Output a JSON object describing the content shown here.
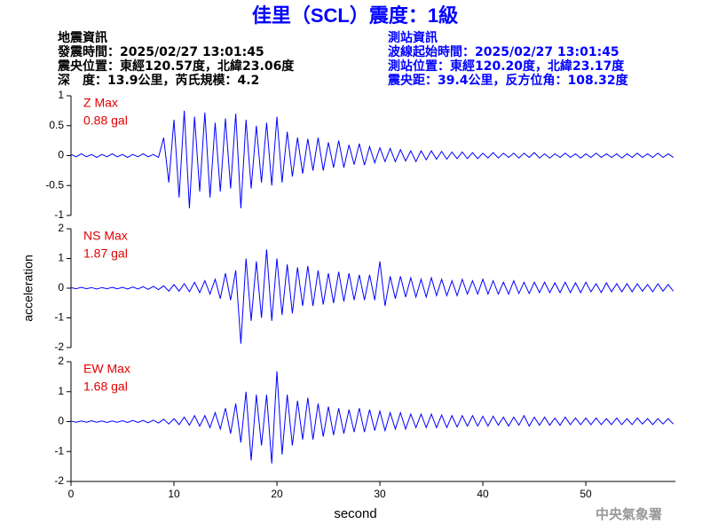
{
  "header": {
    "title": "佳里（SCL）震度：1級",
    "left": [
      "地震資訊",
      "發震時間：2025/02/27 13:01:45",
      "震央位置：東經120.57度，北緯23.06度",
      "深　度：13.9公里，芮氏規模：4.2"
    ],
    "right": [
      "測站資訊",
      "波線起始時間：2025/02/27 13:01:45",
      "測站位置：東經120.20度，北緯23.17度",
      "震央距：39.4公里，反方位角：108.32度"
    ]
  },
  "ylabel": "acceleration",
  "watermark": "中央氣象署",
  "chart_data": [
    {
      "type": "line",
      "color": "#0000ff",
      "annotations": [
        "Z Max",
        "0.88 gal"
      ],
      "xlim": [
        0,
        58.7
      ],
      "ylim": [
        -1,
        1
      ],
      "yticks": [
        -1,
        -0.5,
        0,
        0.5,
        1
      ],
      "x": [
        0,
        0.5,
        1,
        1.5,
        2,
        2.5,
        3,
        3.5,
        4,
        4.5,
        5,
        5.5,
        6,
        6.5,
        7,
        7.5,
        8,
        8.5,
        9,
        9.5,
        10,
        10.5,
        11,
        11.5,
        12,
        12.5,
        13,
        13.5,
        14,
        14.5,
        15,
        15.5,
        16,
        16.5,
        17,
        17.5,
        18,
        18.5,
        19,
        19.5,
        20,
        20.5,
        21,
        21.5,
        22,
        22.5,
        23,
        23.5,
        24,
        24.5,
        25,
        25.5,
        26,
        26.5,
        27,
        27.5,
        28,
        28.5,
        29,
        29.5,
        30,
        30.5,
        31,
        31.5,
        32,
        32.5,
        33,
        33.5,
        34,
        34.5,
        35,
        35.5,
        36,
        36.5,
        37,
        37.5,
        38,
        38.5,
        39,
        39.5,
        40,
        40.5,
        41,
        41.5,
        42,
        42.5,
        43,
        43.5,
        44,
        44.5,
        45,
        45.5,
        46,
        46.5,
        47,
        47.5,
        48,
        48.5,
        49,
        49.5,
        50,
        50.5,
        51,
        51.5,
        52,
        52.5,
        53,
        53.5,
        54,
        54.5,
        55,
        55.5,
        56,
        56.5,
        57,
        57.5,
        58,
        58.5
      ],
      "values": [
        0.02,
        -0.02,
        0.03,
        -0.02,
        0.02,
        -0.03,
        0.02,
        -0.02,
        0.03,
        -0.02,
        0.02,
        -0.03,
        0.02,
        -0.02,
        0.03,
        -0.02,
        0.02,
        -0.03,
        0.3,
        -0.45,
        0.6,
        -0.7,
        0.75,
        -0.88,
        0.65,
        -0.6,
        0.72,
        -0.7,
        0.55,
        -0.6,
        0.62,
        -0.55,
        0.7,
        -0.88,
        0.6,
        -0.55,
        0.5,
        -0.45,
        0.55,
        -0.5,
        0.65,
        -0.45,
        0.4,
        -0.35,
        0.3,
        -0.3,
        0.28,
        -0.25,
        0.3,
        -0.25,
        0.22,
        -0.2,
        0.25,
        -0.2,
        0.18,
        -0.15,
        0.2,
        -0.16,
        0.15,
        -0.12,
        0.13,
        -0.1,
        0.12,
        -0.1,
        0.1,
        -0.09,
        0.08,
        -0.1,
        0.08,
        -0.07,
        0.08,
        -0.06,
        0.07,
        -0.06,
        0.06,
        -0.05,
        0.06,
        -0.05,
        0.05,
        -0.05,
        0.04,
        -0.04,
        0.05,
        -0.04,
        0.04,
        -0.03,
        0.04,
        -0.04,
        0.04,
        -0.03,
        0.05,
        -0.04,
        0.03,
        -0.04,
        0.03,
        -0.03,
        0.04,
        -0.03,
        0.03,
        -0.04,
        0.03,
        -0.03,
        0.04,
        -0.03,
        0.03,
        -0.03,
        0.03,
        -0.04,
        0.03,
        -0.03,
        0.04,
        -0.03,
        0.03,
        -0.03,
        0.04,
        -0.03,
        0.03,
        -0.03
      ]
    },
    {
      "type": "line",
      "color": "#0000ff",
      "annotations": [
        "NS Max",
        "1.87 gal"
      ],
      "xlim": [
        0,
        58.7
      ],
      "ylim": [
        -2,
        2
      ],
      "yticks": [
        -2,
        -1,
        0,
        1,
        2
      ],
      "x": [
        0,
        0.5,
        1,
        1.5,
        2,
        2.5,
        3,
        3.5,
        4,
        4.5,
        5,
        5.5,
        6,
        6.5,
        7,
        7.5,
        8,
        8.5,
        9,
        9.5,
        10,
        10.5,
        11,
        11.5,
        12,
        12.5,
        13,
        13.5,
        14,
        14.5,
        15,
        15.5,
        16,
        16.5,
        17,
        17.5,
        18,
        18.5,
        19,
        19.5,
        20,
        20.5,
        21,
        21.5,
        22,
        22.5,
        23,
        23.5,
        24,
        24.5,
        25,
        25.5,
        26,
        26.5,
        27,
        27.5,
        28,
        28.5,
        29,
        29.5,
        30,
        30.5,
        31,
        31.5,
        32,
        32.5,
        33,
        33.5,
        34,
        34.5,
        35,
        35.5,
        36,
        36.5,
        37,
        37.5,
        38,
        38.5,
        39,
        39.5,
        40,
        40.5,
        41,
        41.5,
        42,
        42.5,
        43,
        43.5,
        44,
        44.5,
        45,
        45.5,
        46,
        46.5,
        47,
        47.5,
        48,
        48.5,
        49,
        49.5,
        50,
        50.5,
        51,
        51.5,
        52,
        52.5,
        53,
        53.5,
        54,
        54.5,
        55,
        55.5,
        56,
        56.5,
        57,
        57.5,
        58,
        58.5
      ],
      "values": [
        0.02,
        -0.02,
        0.03,
        -0.02,
        0.02,
        -0.03,
        0.02,
        -0.02,
        0.03,
        -0.02,
        0.03,
        -0.03,
        0.04,
        -0.03,
        0.05,
        -0.04,
        0.06,
        -0.05,
        0.08,
        -0.1,
        0.12,
        -0.1,
        0.15,
        -0.12,
        0.2,
        -0.15,
        0.25,
        -0.2,
        0.3,
        -0.35,
        0.5,
        -0.4,
        0.6,
        -1.87,
        1.0,
        -1.1,
        0.9,
        -1.0,
        1.3,
        -1.1,
        1.0,
        -0.9,
        0.8,
        -0.85,
        0.7,
        -0.6,
        0.75,
        -0.6,
        0.6,
        -0.55,
        0.5,
        -0.5,
        0.55,
        -0.45,
        0.5,
        -0.4,
        0.45,
        -0.4,
        0.45,
        -0.4,
        0.9,
        -0.6,
        0.4,
        -0.35,
        0.4,
        -0.3,
        0.35,
        -0.3,
        0.3,
        -0.3,
        0.35,
        -0.25,
        0.3,
        -0.25,
        0.25,
        -0.25,
        0.3,
        -0.2,
        0.25,
        -0.2,
        0.3,
        -0.2,
        0.25,
        -0.2,
        0.2,
        -0.2,
        0.25,
        -0.18,
        0.2,
        -0.18,
        0.2,
        -0.15,
        0.2,
        -0.15,
        0.18,
        -0.15,
        0.2,
        -0.15,
        0.18,
        -0.15,
        0.2,
        -0.12,
        0.15,
        -0.15,
        0.18,
        -0.12,
        0.15,
        -0.12,
        0.15,
        -0.12,
        0.15,
        -0.1,
        0.12,
        -0.12,
        0.15,
        -0.1,
        0.12,
        -0.1
      ]
    },
    {
      "type": "line",
      "color": "#0000ff",
      "annotations": [
        "EW Max",
        "1.68 gal"
      ],
      "xlim": [
        0,
        58.7
      ],
      "ylim": [
        -2,
        2
      ],
      "yticks": [
        -2,
        -1,
        0,
        1,
        2
      ],
      "xticks": [
        0,
        10,
        20,
        30,
        40,
        50
      ],
      "xlabel": "second",
      "x": [
        0,
        0.5,
        1,
        1.5,
        2,
        2.5,
        3,
        3.5,
        4,
        4.5,
        5,
        5.5,
        6,
        6.5,
        7,
        7.5,
        8,
        8.5,
        9,
        9.5,
        10,
        10.5,
        11,
        11.5,
        12,
        12.5,
        13,
        13.5,
        14,
        14.5,
        15,
        15.5,
        16,
        16.5,
        17,
        17.5,
        18,
        18.5,
        19,
        19.5,
        20,
        20.5,
        21,
        21.5,
        22,
        22.5,
        23,
        23.5,
        24,
        24.5,
        25,
        25.5,
        26,
        26.5,
        27,
        27.5,
        28,
        28.5,
        29,
        29.5,
        30,
        30.5,
        31,
        31.5,
        32,
        32.5,
        33,
        33.5,
        34,
        34.5,
        35,
        35.5,
        36,
        36.5,
        37,
        37.5,
        38,
        38.5,
        39,
        39.5,
        40,
        40.5,
        41,
        41.5,
        42,
        42.5,
        43,
        43.5,
        44,
        44.5,
        45,
        45.5,
        46,
        46.5,
        47,
        47.5,
        48,
        48.5,
        49,
        49.5,
        50,
        50.5,
        51,
        51.5,
        52,
        52.5,
        53,
        53.5,
        54,
        54.5,
        55,
        55.5,
        56,
        56.5,
        57,
        57.5,
        58,
        58.5
      ],
      "values": [
        0.02,
        -0.02,
        0.02,
        -0.02,
        0.03,
        -0.02,
        0.02,
        -0.03,
        0.02,
        -0.02,
        0.03,
        -0.03,
        0.04,
        -0.03,
        0.04,
        -0.04,
        0.05,
        -0.05,
        0.08,
        -0.08,
        0.1,
        -0.1,
        0.15,
        -0.12,
        0.2,
        -0.15,
        0.2,
        -0.2,
        0.3,
        -0.25,
        0.45,
        -0.4,
        0.6,
        -0.7,
        1.0,
        -1.3,
        0.9,
        -0.8,
        0.9,
        -1.4,
        1.68,
        -1.1,
        0.9,
        -0.8,
        0.7,
        -0.6,
        0.8,
        -0.6,
        0.6,
        -0.5,
        0.5,
        -0.45,
        0.45,
        -0.4,
        0.4,
        -0.35,
        0.45,
        -0.35,
        0.4,
        -0.3,
        0.35,
        -0.3,
        0.3,
        -0.25,
        0.3,
        -0.25,
        0.25,
        -0.2,
        0.25,
        -0.2,
        0.25,
        -0.2,
        0.22,
        -0.2,
        0.2,
        -0.18,
        0.2,
        -0.15,
        0.2,
        -0.15,
        0.18,
        -0.15,
        0.18,
        -0.12,
        0.15,
        -0.15,
        0.15,
        -0.12,
        0.2,
        -0.15,
        0.15,
        -0.12,
        0.15,
        -0.12,
        0.12,
        -0.12,
        0.15,
        -0.1,
        0.12,
        -0.1,
        0.12,
        -0.1,
        0.12,
        -0.1,
        0.1,
        -0.1,
        0.12,
        -0.1,
        0.1,
        -0.1,
        0.12,
        -0.08,
        0.1,
        -0.1,
        0.1,
        -0.08,
        0.1,
        -0.08
      ]
    }
  ]
}
